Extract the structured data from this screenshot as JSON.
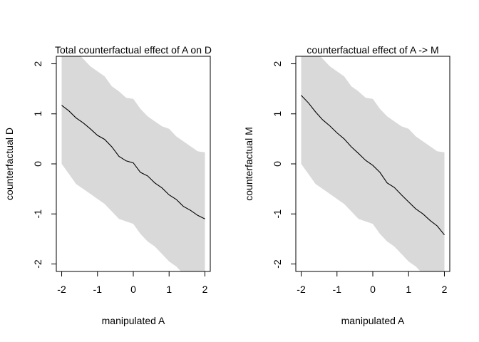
{
  "chart_data": [
    {
      "type": "line",
      "title": "Total counterfactual effect of A on D",
      "xlabel": "manipulated A",
      "ylabel": "counterfactual D",
      "xlim": [
        -2.15,
        2.15
      ],
      "ylim": [
        -2.15,
        2.15
      ],
      "x_ticks": [
        -2,
        -1,
        0,
        1,
        2
      ],
      "y_ticks": [
        -2,
        -1,
        0,
        1,
        2
      ],
      "x_tick_labels": [
        "-2",
        "-1",
        "0",
        "1",
        "2"
      ],
      "y_tick_labels": [
        "-2",
        "-1",
        "0",
        "1",
        "2"
      ],
      "grid": false,
      "band_color": "#d9d9d9",
      "line_color": "#000000",
      "x": [
        -2.0,
        -1.8,
        -1.6,
        -1.4,
        -1.2,
        -1.0,
        -0.8,
        -0.6,
        -0.4,
        -0.2,
        0.0,
        0.2,
        0.4,
        0.6,
        0.8,
        1.0,
        1.2,
        1.4,
        1.6,
        1.8,
        2.0
      ],
      "mean": [
        1.17,
        1.06,
        0.92,
        0.82,
        0.7,
        0.57,
        0.49,
        0.34,
        0.15,
        0.06,
        0.02,
        -0.17,
        -0.24,
        -0.38,
        -0.48,
        -0.62,
        -0.71,
        -0.85,
        -0.93,
        -1.03,
        -1.1
      ],
      "upper": [
        2.4,
        2.35,
        2.25,
        2.1,
        1.95,
        1.85,
        1.75,
        1.55,
        1.45,
        1.32,
        1.3,
        1.1,
        0.95,
        0.85,
        0.75,
        0.7,
        0.55,
        0.45,
        0.35,
        0.25,
        0.23
      ],
      "lower": [
        0.0,
        -0.2,
        -0.4,
        -0.5,
        -0.6,
        -0.7,
        -0.8,
        -0.95,
        -1.1,
        -1.15,
        -1.2,
        -1.4,
        -1.55,
        -1.65,
        -1.8,
        -1.95,
        -2.05,
        -2.2,
        -2.3,
        -2.4,
        -2.45
      ]
    },
    {
      "type": "line",
      "title": "counterfactual effect of A -> M",
      "xlabel": "manipulated A",
      "ylabel": "counterfactual M",
      "xlim": [
        -2.15,
        2.15
      ],
      "ylim": [
        -2.15,
        2.15
      ],
      "x_ticks": [
        -2,
        -1,
        0,
        1,
        2
      ],
      "y_ticks": [
        -2,
        -1,
        0,
        1,
        2
      ],
      "x_tick_labels": [
        "-2",
        "-1",
        "0",
        "1",
        "2"
      ],
      "y_tick_labels": [
        "-2",
        "-1",
        "0",
        "1",
        "2"
      ],
      "grid": false,
      "band_color": "#d9d9d9",
      "line_color": "#000000",
      "x": [
        -2.0,
        -1.8,
        -1.6,
        -1.4,
        -1.2,
        -1.0,
        -0.8,
        -0.6,
        -0.4,
        -0.2,
        0.0,
        0.2,
        0.4,
        0.6,
        0.8,
        1.0,
        1.2,
        1.4,
        1.6,
        1.8,
        2.0
      ],
      "mean": [
        1.37,
        1.22,
        1.04,
        0.88,
        0.76,
        0.62,
        0.5,
        0.34,
        0.21,
        0.07,
        -0.03,
        -0.17,
        -0.38,
        -0.47,
        -0.62,
        -0.76,
        -0.9,
        -1.0,
        -1.13,
        -1.24,
        -1.42
      ],
      "upper": [
        2.4,
        2.35,
        2.25,
        2.1,
        1.95,
        1.85,
        1.75,
        1.55,
        1.45,
        1.32,
        1.3,
        1.1,
        0.95,
        0.85,
        0.75,
        0.7,
        0.55,
        0.45,
        0.35,
        0.25,
        0.23
      ],
      "lower": [
        0.0,
        -0.2,
        -0.4,
        -0.5,
        -0.6,
        -0.7,
        -0.8,
        -0.95,
        -1.1,
        -1.15,
        -1.2,
        -1.4,
        -1.55,
        -1.65,
        -1.8,
        -1.95,
        -2.05,
        -2.2,
        -2.3,
        -2.4,
        -2.45
      ]
    }
  ]
}
